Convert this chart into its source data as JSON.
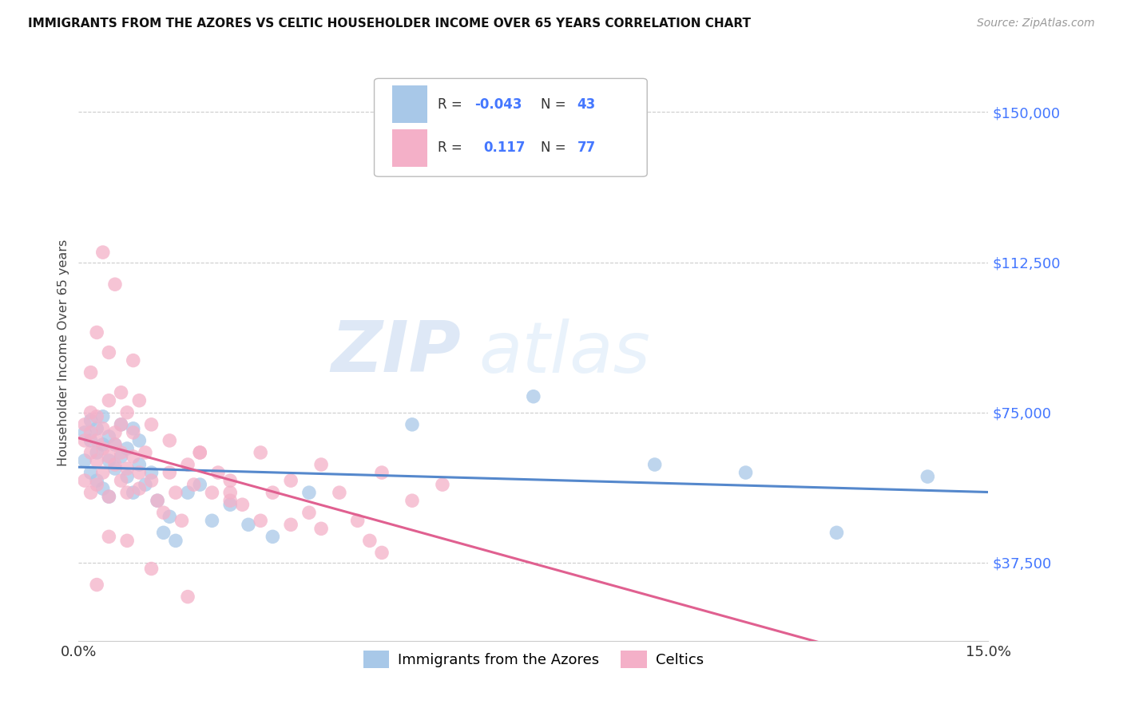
{
  "title": "IMMIGRANTS FROM THE AZORES VS CELTIC HOUSEHOLDER INCOME OVER 65 YEARS CORRELATION CHART",
  "source": "Source: ZipAtlas.com",
  "ylabel": "Householder Income Over 65 years",
  "y_ticks": [
    37500,
    75000,
    112500,
    150000
  ],
  "y_tick_labels": [
    "$37,500",
    "$75,000",
    "$112,500",
    "$150,000"
  ],
  "x_min": 0.0,
  "x_max": 0.15,
  "y_min": 18000,
  "y_max": 162000,
  "color_azores": "#a8c8e8",
  "color_celtics": "#f4b0c8",
  "line_color_azores": "#5588cc",
  "line_color_celtics": "#e06090",
  "watermark_zip": "ZIP",
  "watermark_atlas": "atlas",
  "azores_x": [
    0.001,
    0.001,
    0.002,
    0.002,
    0.002,
    0.003,
    0.003,
    0.003,
    0.004,
    0.004,
    0.004,
    0.005,
    0.005,
    0.005,
    0.006,
    0.006,
    0.007,
    0.007,
    0.008,
    0.008,
    0.009,
    0.009,
    0.01,
    0.01,
    0.011,
    0.012,
    0.013,
    0.014,
    0.015,
    0.016,
    0.018,
    0.02,
    0.022,
    0.025,
    0.028,
    0.032,
    0.038,
    0.055,
    0.075,
    0.095,
    0.11,
    0.125,
    0.14
  ],
  "azores_y": [
    63000,
    70000,
    68000,
    73000,
    60000,
    65000,
    71000,
    58000,
    67000,
    74000,
    56000,
    63000,
    69000,
    54000,
    61000,
    67000,
    64000,
    72000,
    59000,
    66000,
    71000,
    55000,
    62000,
    68000,
    57000,
    60000,
    53000,
    45000,
    49000,
    43000,
    55000,
    57000,
    48000,
    52000,
    47000,
    44000,
    55000,
    72000,
    79000,
    62000,
    60000,
    45000,
    59000
  ],
  "celtics_x": [
    0.001,
    0.001,
    0.001,
    0.002,
    0.002,
    0.002,
    0.002,
    0.003,
    0.003,
    0.003,
    0.003,
    0.004,
    0.004,
    0.004,
    0.005,
    0.005,
    0.005,
    0.006,
    0.006,
    0.006,
    0.007,
    0.007,
    0.007,
    0.008,
    0.008,
    0.009,
    0.009,
    0.01,
    0.01,
    0.011,
    0.012,
    0.013,
    0.014,
    0.015,
    0.016,
    0.017,
    0.018,
    0.019,
    0.02,
    0.022,
    0.023,
    0.025,
    0.027,
    0.03,
    0.032,
    0.035,
    0.038,
    0.04,
    0.043,
    0.046,
    0.05,
    0.055,
    0.06,
    0.002,
    0.003,
    0.004,
    0.005,
    0.006,
    0.007,
    0.008,
    0.009,
    0.01,
    0.012,
    0.015,
    0.02,
    0.025,
    0.03,
    0.04,
    0.05,
    0.003,
    0.005,
    0.008,
    0.012,
    0.018,
    0.025,
    0.035,
    0.048
  ],
  "celtics_y": [
    68000,
    72000,
    58000,
    65000,
    70000,
    75000,
    55000,
    63000,
    68000,
    74000,
    57000,
    66000,
    71000,
    60000,
    64000,
    78000,
    54000,
    62000,
    70000,
    67000,
    65000,
    72000,
    58000,
    61000,
    55000,
    64000,
    70000,
    60000,
    56000,
    65000,
    58000,
    53000,
    50000,
    60000,
    55000,
    48000,
    62000,
    57000,
    65000,
    55000,
    60000,
    58000,
    52000,
    65000,
    55000,
    58000,
    50000,
    62000,
    55000,
    48000,
    60000,
    53000,
    57000,
    85000,
    95000,
    115000,
    90000,
    107000,
    80000,
    75000,
    88000,
    78000,
    72000,
    68000,
    65000,
    55000,
    48000,
    46000,
    40000,
    32000,
    44000,
    43000,
    36000,
    29000,
    53000,
    47000,
    43000
  ]
}
